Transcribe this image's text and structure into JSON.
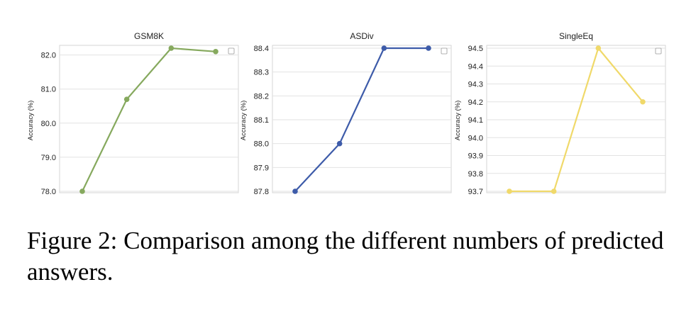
{
  "figure": {
    "caption": "Figure 2: Comparison among the different numbers of predicted answers."
  },
  "chart_data": [
    {
      "type": "line",
      "title": "GSM8K",
      "ylabel": "Accuracy (%)",
      "x": [
        1,
        2,
        3,
        4
      ],
      "values": [
        78.0,
        80.7,
        82.2,
        82.1
      ],
      "ylim": [
        78.0,
        82.2
      ],
      "yticks": [
        78.0,
        79.0,
        80.0,
        81.0,
        82.0
      ],
      "ytick_labels": [
        "78.0",
        "79.0",
        "80.0",
        "81.0",
        "82.0"
      ],
      "color": "#86a95e",
      "grid": "horizontal",
      "legend": "top-right (empty)"
    },
    {
      "type": "line",
      "title": "ASDiv",
      "ylabel": "Accuracy (%)",
      "x": [
        1,
        2,
        3,
        4
      ],
      "values": [
        87.8,
        88.0,
        88.4,
        88.4
      ],
      "ylim": [
        87.8,
        88.4
      ],
      "yticks": [
        87.8,
        87.9,
        88.0,
        88.1,
        88.2,
        88.3,
        88.4
      ],
      "ytick_labels": [
        "87.8",
        "87.9",
        "88.0",
        "88.1",
        "88.2",
        "88.3",
        "88.4"
      ],
      "color": "#3d5ba9",
      "grid": "horizontal",
      "legend": "top-right (empty)"
    },
    {
      "type": "line",
      "title": "SingleEq",
      "ylabel": "Accuracy (%)",
      "x": [
        1,
        2,
        3,
        4
      ],
      "values": [
        93.7,
        93.7,
        94.5,
        94.2
      ],
      "ylim": [
        93.7,
        94.5
      ],
      "yticks": [
        93.7,
        93.8,
        93.9,
        94.0,
        94.1,
        94.2,
        94.3,
        94.4,
        94.5
      ],
      "ytick_labels": [
        "93.7",
        "93.8",
        "93.9",
        "94.0",
        "94.1",
        "94.2",
        "94.3",
        "94.4",
        "94.5"
      ],
      "color": "#f0d96a",
      "grid": "horizontal",
      "legend": "top-right (empty)"
    }
  ]
}
